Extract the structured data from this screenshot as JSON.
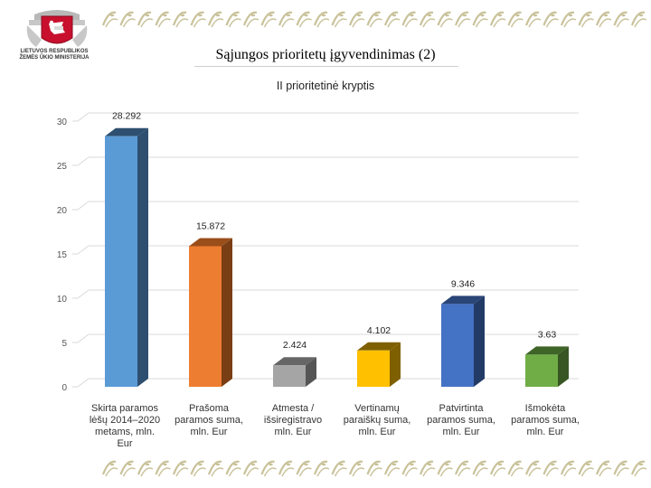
{
  "slide": {
    "title": "Sąjungos prioritetų įgyvendinimas (2)",
    "logo_lines": [
      "LIETUVOS RESPUBLIKOS",
      "ŽEMĖS ŪKIO MINISTERIJA"
    ]
  },
  "colors": {
    "ornament": "#c9c29a",
    "axis_text": "#555555",
    "gridline": "#d9d9d9"
  },
  "chart_data": {
    "type": "bar",
    "title": "II prioritetinė kryptis",
    "xlabel": "",
    "ylabel": "",
    "ylim": [
      0,
      30
    ],
    "yticks": [
      "0",
      "5",
      "10",
      "15",
      "20",
      "25",
      "30"
    ],
    "grid": true,
    "legend": "none",
    "categories": [
      [
        "Skirta paramos",
        "lėšų 2014–2020",
        "metams, mln.",
        "Eur"
      ],
      [
        "Prašoma",
        "paramos suma,",
        "mln. Eur"
      ],
      [
        "Atmesta /",
        "išsiregistravo",
        "mln. Eur"
      ],
      [
        "Vertinamų",
        "paraiškų suma,",
        "mln. Eur"
      ],
      [
        "Patvirtinta",
        "paramos suma,",
        "mln. Eur"
      ],
      [
        "Išmokėta",
        "paramos suma,",
        "mln. Eur"
      ]
    ],
    "values": [
      28.292,
      15.872,
      2.424,
      4.102,
      9.346,
      3.63
    ],
    "data_labels": [
      "28.292",
      "15.872",
      "2.424",
      "4.102",
      "9.346",
      "3.63"
    ],
    "bar_colors": [
      {
        "front": "#5b9bd5",
        "side": "#2e4f70",
        "top": "#2e4f70"
      },
      {
        "front": "#ed7d31",
        "side": "#7a3e14",
        "top": "#9a4e1a"
      },
      {
        "front": "#a5a5a5",
        "side": "#555555",
        "top": "#666666"
      },
      {
        "front": "#ffc000",
        "side": "#7f6000",
        "top": "#7f6000"
      },
      {
        "front": "#4472c4",
        "side": "#223a66",
        "top": "#2a4577"
      },
      {
        "front": "#70ad47",
        "side": "#375623",
        "top": "#3f6428"
      }
    ]
  }
}
